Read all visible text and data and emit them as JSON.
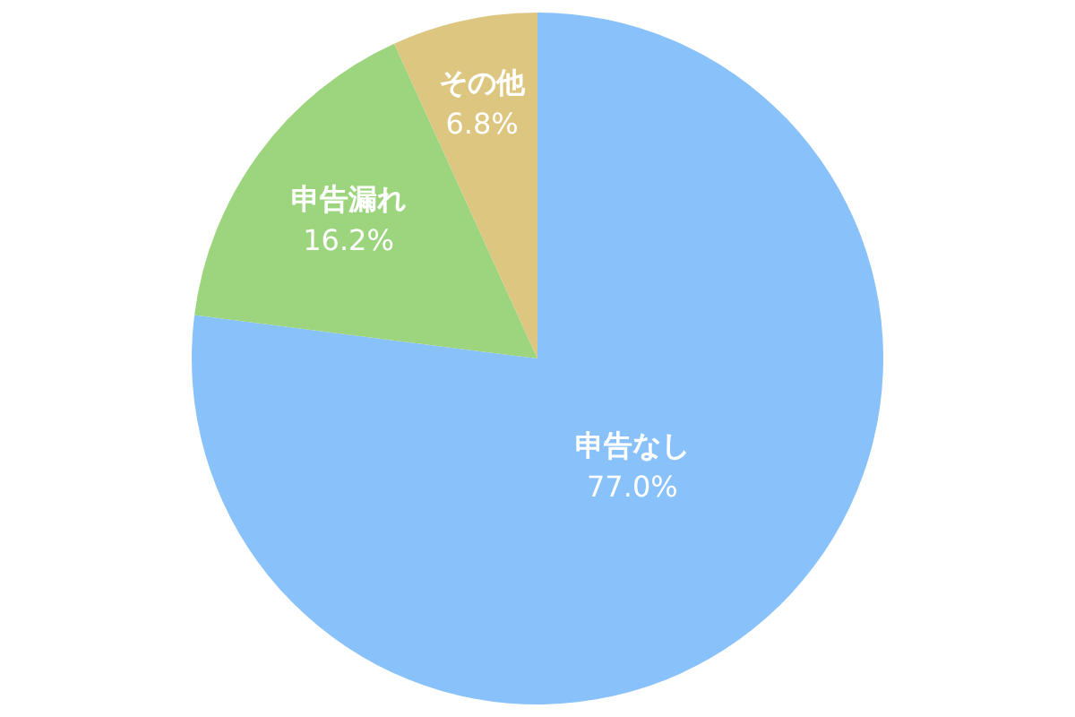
{
  "chart_data": {
    "type": "pie",
    "categories": [
      "申告なし",
      "申告漏れ",
      "その他"
    ],
    "values": [
      77.0,
      16.2,
      6.8
    ],
    "colors": [
      "#89c1fa",
      "#9cd57e",
      "#dcc680"
    ],
    "value_labels": [
      "77.0%",
      "16.2%",
      "6.8%"
    ]
  }
}
